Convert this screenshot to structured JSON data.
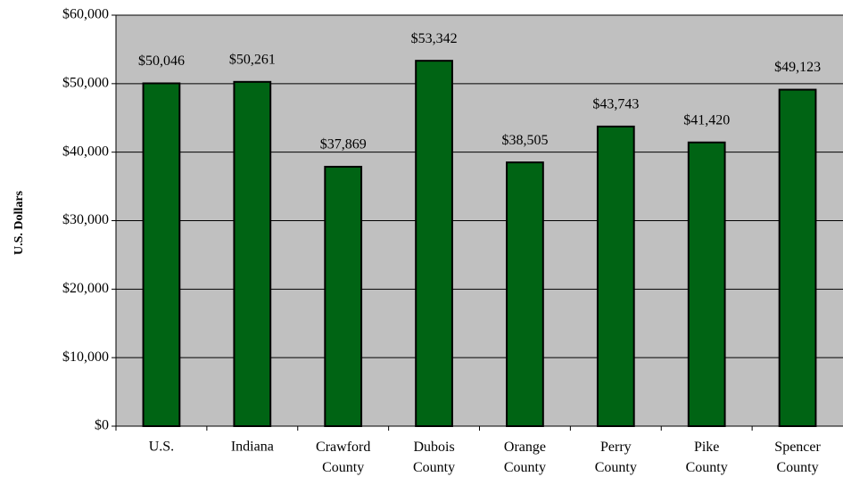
{
  "chart_data": {
    "type": "bar",
    "y_label": "U.S. Dollars",
    "categories": [
      "U.S.",
      "Indiana",
      "Crawford County",
      "Dubois County",
      "Orange County",
      "Perry County",
      "Pike County",
      "Spencer County"
    ],
    "values": [
      50046,
      50261,
      37869,
      53342,
      38505,
      43743,
      41420,
      49123
    ],
    "value_labels": [
      "$50,046",
      "$50,261",
      "$37,869",
      "$53,342",
      "$38,505",
      "$43,743",
      "$41,420",
      "$49,123"
    ],
    "color": "#006414",
    "ylim": [
      0,
      60000
    ],
    "yticks": [
      {
        "value": 0,
        "label": "$0"
      },
      {
        "value": 10000,
        "label": "$10,000"
      },
      {
        "value": 20000,
        "label": "$20,000"
      },
      {
        "value": 30000,
        "label": "$30,000"
      },
      {
        "value": 40000,
        "label": "$40,000"
      },
      {
        "value": 50000,
        "label": "$50,000"
      },
      {
        "value": 60000,
        "label": "$60,000"
      }
    ],
    "grid": true
  }
}
